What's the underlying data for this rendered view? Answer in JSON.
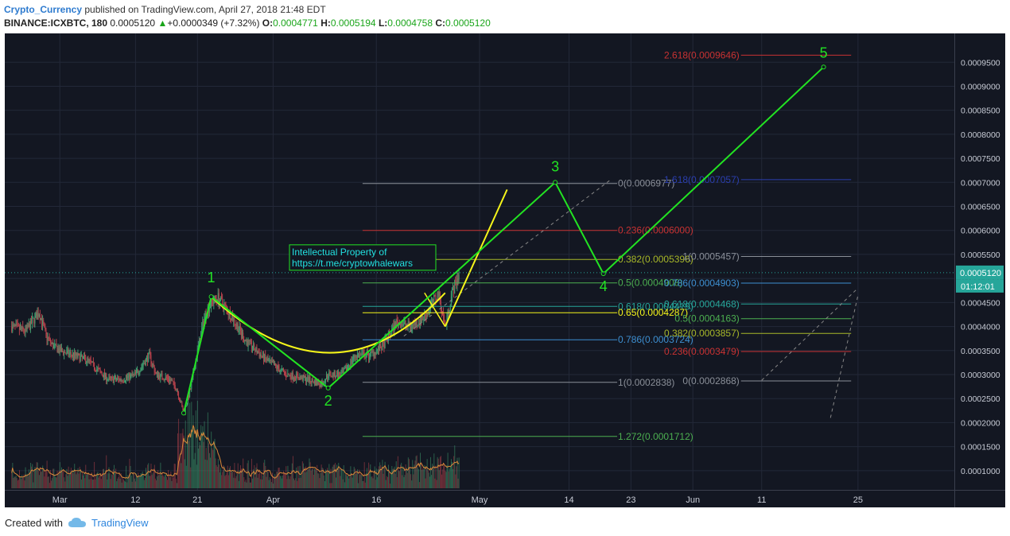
{
  "header": {
    "author": "Crypto_Currency",
    "published": "published on TradingView.com, April 27, 2018 21:48 EDT",
    "symbol": "BINANCE:ICXBTC, 180",
    "last": "0.0005120",
    "arrow": "▲",
    "change": "+0.0000349 (+7.32%)",
    "o_label": "O:",
    "o": "0.0004771",
    "h_label": "H:",
    "h": "0.0005194",
    "l_label": "L:",
    "l": "0.0004758",
    "c_label": "C:",
    "c": "0.0005120"
  },
  "footer": {
    "created_with": "Created with",
    "brand": "TradingView"
  },
  "colors": {
    "background": "#131722",
    "grid": "#232838",
    "wave_green": "#22e322",
    "curve_yellow": "#f5f51a",
    "candle_up": "#3e9b6e",
    "candle_down": "#b5414b",
    "price_tag": "#26a69a"
  },
  "chart_data": {
    "type": "candlestick",
    "ylim": [
      6e-05,
      0.00101
    ],
    "price_ticks": [
      "0.0009500",
      "0.0009000",
      "0.0008500",
      "0.0008000",
      "0.0007500",
      "0.0007000",
      "0.0006500",
      "0.0006000",
      "0.0005500",
      "0.0005000",
      "0.0004500",
      "0.0004000",
      "0.0003500",
      "0.0003000",
      "0.0002500",
      "0.0002000",
      "0.0001500",
      "0.0001000"
    ],
    "date_ticks": [
      {
        "label": "Mar",
        "date": "2018-03-01"
      },
      {
        "label": "12",
        "date": "2018-03-12"
      },
      {
        "label": "21",
        "date": "2018-03-21"
      },
      {
        "label": "Apr",
        "date": "2018-04-01"
      },
      {
        "label": "16",
        "date": "2018-04-16"
      },
      {
        "label": "May",
        "date": "2018-05-01"
      },
      {
        "label": "14",
        "date": "2018-05-14"
      },
      {
        "label": "23",
        "date": "2018-05-23"
      },
      {
        "label": "Jun",
        "date": "2018-06-01"
      },
      {
        "label": "11",
        "date": "2018-06-11"
      },
      {
        "label": "25",
        "date": "2018-06-25"
      }
    ],
    "current_price": {
      "value": 0.000512,
      "label": "0.0005120",
      "countdown": "01:12:01"
    },
    "price_path": [
      [
        "2018-02-22",
        0.0004
      ],
      [
        "2018-02-24",
        0.00039
      ],
      [
        "2018-02-26",
        0.00043
      ],
      [
        "2018-02-27",
        0.00038
      ],
      [
        "2018-02-28",
        0.00036
      ],
      [
        "2018-03-01",
        0.00035
      ],
      [
        "2018-03-03",
        0.00034
      ],
      [
        "2018-03-05",
        0.00033
      ],
      [
        "2018-03-08",
        0.00029
      ],
      [
        "2018-03-10",
        0.00029
      ],
      [
        "2018-03-12",
        0.0003
      ],
      [
        "2018-03-14",
        0.00034
      ],
      [
        "2018-03-15",
        0.0003
      ],
      [
        "2018-03-17",
        0.00029
      ],
      [
        "2018-03-18",
        0.00027
      ],
      [
        "2018-03-19",
        0.00022
      ],
      [
        "2018-03-20",
        0.00027
      ],
      [
        "2018-03-21",
        0.00035
      ],
      [
        "2018-03-22",
        0.00042
      ],
      [
        "2018-03-23",
        0.00045
      ],
      [
        "2018-03-24",
        0.00046
      ],
      [
        "2018-03-26",
        0.00042
      ],
      [
        "2018-03-28",
        0.00037
      ],
      [
        "2018-03-31",
        0.00033
      ],
      [
        "2018-04-03",
        0.0003
      ],
      [
        "2018-04-06",
        0.00029
      ],
      [
        "2018-04-08",
        0.00028
      ],
      [
        "2018-04-09",
        0.0003
      ],
      [
        "2018-04-11",
        0.0003
      ],
      [
        "2018-04-13",
        0.00034
      ],
      [
        "2018-04-15",
        0.00034
      ],
      [
        "2018-04-17",
        0.00036
      ],
      [
        "2018-04-19",
        0.00041
      ],
      [
        "2018-04-21",
        0.0004
      ],
      [
        "2018-04-23",
        0.00042
      ],
      [
        "2018-04-25",
        0.00047
      ],
      [
        "2018-04-26",
        0.0004
      ],
      [
        "2018-04-27",
        0.00047
      ],
      [
        "2018-04-28",
        0.00051
      ]
    ],
    "wave_labels": [
      {
        "label": "1",
        "date": "2018-03-23",
        "price": 0.000462
      },
      {
        "label": "2",
        "date": "2018-04-09",
        "price": 0.000272
      },
      {
        "label": "3",
        "date": "2018-05-12",
        "price": 0.0007
      },
      {
        "label": "4",
        "date": "2018-05-19",
        "price": 0.00051
      },
      {
        "label": "5",
        "date": "2018-06-20",
        "price": 0.00094
      }
    ],
    "wave_path": [
      [
        "2018-03-19",
        0.00022
      ],
      [
        "2018-03-23",
        0.000462
      ],
      [
        "2018-04-09",
        0.000272
      ],
      [
        "2018-05-12",
        0.0007
      ],
      [
        "2018-05-19",
        0.00051
      ],
      [
        "2018-06-20",
        0.00094
      ]
    ],
    "fib_retracement": [
      {
        "label": "0(0.0006977)",
        "value": 0.0006977,
        "color": "#8a8f98"
      },
      {
        "label": "0.236(0.0006000)",
        "value": 0.0006,
        "color": "#c83232"
      },
      {
        "label": "0.382(0.0005396)",
        "value": 0.0005396,
        "color": "#a8b829"
      },
      {
        "label": "0.5(0.0004908)",
        "value": 0.0004908,
        "color": "#4caf50"
      },
      {
        "label": "0.618(0.0004419)",
        "value": 0.0004419,
        "color": "#26a69a"
      },
      {
        "label": "0.65(0.0004287)",
        "value": 0.0004287,
        "color": "#f5f51a"
      },
      {
        "label": "0.786(0.0003724)",
        "value": 0.0003724,
        "color": "#3d8fd1"
      },
      {
        "label": "1(0.0002838)",
        "value": 0.0002838,
        "color": "#8a8f98"
      },
      {
        "label": "1.272(0.0001712)",
        "value": 0.0001712,
        "color": "#4caf50"
      }
    ],
    "fib_extension": [
      {
        "label": "2.618(0.0009646)",
        "value": 0.0009646,
        "color": "#c83232"
      },
      {
        "label": "1.618(0.0007057)",
        "value": 0.0007057,
        "color": "#2b3fb0"
      },
      {
        "label": "1(0.0005457)",
        "value": 0.0005457,
        "color": "#8a8f98"
      },
      {
        "label": "0.786(0.0004903)",
        "value": 0.0004903,
        "color": "#3d8fd1"
      },
      {
        "label": "0.618(0.0004468)",
        "value": 0.0004468,
        "color": "#26a69a"
      },
      {
        "label": "0.5(0.0004163)",
        "value": 0.0004163,
        "color": "#4caf50"
      },
      {
        "label": "0.382(0.0003857)",
        "value": 0.0003857,
        "color": "#a8b829"
      },
      {
        "label": "0.236(0.0003479)",
        "value": 0.0003479,
        "color": "#c83232"
      },
      {
        "label": "0(0.0002868)",
        "value": 0.0002868,
        "color": "#8a8f98"
      }
    ],
    "annotation": {
      "line1": "Intellectual Property of",
      "line2": "https://t.me/cryptowhalewars"
    }
  }
}
